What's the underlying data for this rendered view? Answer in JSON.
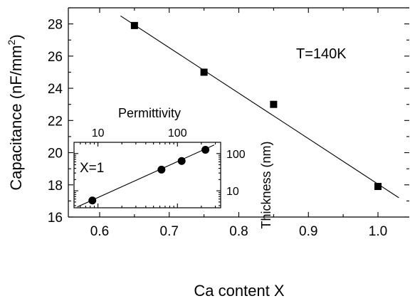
{
  "chart_data": [
    {
      "type": "scatter",
      "title": "",
      "xlabel": "Ca content X",
      "ylabel": "Capacitance (nF/mm",
      "ylabel_superscript": "2",
      "ylabel_suffix": ")",
      "xlim": [
        0.555,
        1.045
      ],
      "ylim": [
        16,
        29
      ],
      "x_ticks": [
        0.6,
        0.7,
        0.8,
        0.9,
        1.0
      ],
      "x_tick_labels": [
        "0.6",
        "0.7",
        "0.8",
        "0.9",
        "1.0"
      ],
      "y_ticks": [
        16,
        18,
        20,
        22,
        24,
        26,
        28
      ],
      "y_tick_labels": [
        "16",
        "18",
        "20",
        "22",
        "24",
        "26",
        "28"
      ],
      "annotation": "T=140K",
      "marker": "square",
      "grid": false,
      "series": [
        {
          "x": [
            0.65,
            0.75,
            0.85,
            1.0
          ],
          "y": [
            27.9,
            25.0,
            23.0,
            17.9
          ]
        }
      ],
      "fit_line": {
        "x": [
          0.63,
          1.03
        ],
        "y": [
          28.5,
          17.2
        ]
      }
    },
    {
      "type": "scatter",
      "title": "",
      "xlabel": "Permittivity",
      "ylabel": "Thickness (nm)",
      "x_scale": "log",
      "y_scale": "log",
      "xlim": [
        5,
        350
      ],
      "ylim": [
        3.5,
        200
      ],
      "x_ticks": [
        10,
        100
      ],
      "x_tick_labels": [
        "10",
        "100"
      ],
      "y_ticks": [
        10,
        100
      ],
      "y_tick_labels": [
        "10",
        "100"
      ],
      "annotation": "X=1",
      "marker": "circle",
      "grid": false,
      "series": [
        {
          "x": [
            8.5,
            63,
            113,
            225
          ],
          "y": [
            5.5,
            37,
            63,
            126
          ]
        }
      ],
      "fit_line": {
        "x": [
          5.5,
          290
        ],
        "y": [
          3.7,
          170
        ]
      }
    }
  ]
}
